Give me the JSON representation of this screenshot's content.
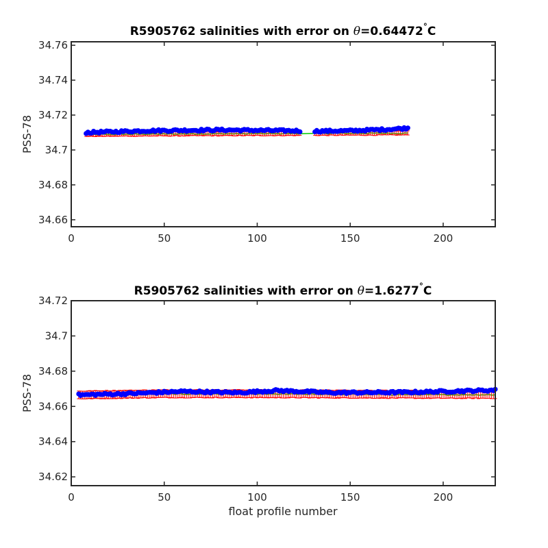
{
  "chart_data": [
    {
      "type": "scatter",
      "title_text": "R5905762 salinities with error on ",
      "title_symbol": "θ",
      "title_value": "=0.64472",
      "title_unit": "C",
      "title_degree": "°",
      "xlabel": "",
      "ylabel": "PSS-78",
      "xlim": [
        0,
        228
      ],
      "ylim": [
        34.656,
        34.762
      ],
      "xticks": [
        0,
        50,
        100,
        150,
        200
      ],
      "xtick_labels": [
        "0",
        "50",
        "100",
        "150",
        "200"
      ],
      "yticks": [
        34.66,
        34.68,
        34.7,
        34.72,
        34.74,
        34.76
      ],
      "ytick_labels": [
        "34.66",
        "34.68",
        "34.7",
        "34.72",
        "34.74",
        "34.76"
      ],
      "grid": false,
      "x_range": [
        8,
        181
      ],
      "x_gaps": [
        [
          124,
          130
        ]
      ],
      "series": [
        {
          "role": "float_salinity",
          "color": "#0000ff",
          "marker": "filled-circle",
          "profiles": [
            8,
            40,
            80,
            120,
            132,
            150,
            170,
            181
          ],
          "values": [
            34.71,
            34.711,
            34.7115,
            34.711,
            34.7108,
            34.711,
            34.7118,
            34.7125
          ]
        },
        {
          "role": "mapped_salinity",
          "color": "#ff0000",
          "marker": "error-bar",
          "profiles": [
            8,
            60,
            120,
            181
          ],
          "values": [
            34.709,
            34.7093,
            34.7095,
            34.7098
          ],
          "error": 0.0012
        },
        {
          "role": "calibrated_salinity",
          "color": "#00cc00",
          "marker": "line",
          "profiles": [
            8,
            60,
            120,
            181
          ],
          "values": [
            34.7088,
            34.7092,
            34.7094,
            34.7096
          ]
        }
      ]
    },
    {
      "type": "scatter",
      "title_text": "R5905762 salinities with error on ",
      "title_symbol": "θ",
      "title_value": "=1.6277",
      "title_unit": "C",
      "title_degree": "°",
      "xlabel": "float profile number",
      "ylabel": "PSS-78",
      "xlim": [
        0,
        228
      ],
      "ylim": [
        34.615,
        34.72
      ],
      "xticks": [
        0,
        50,
        100,
        150,
        200
      ],
      "xtick_labels": [
        "0",
        "50",
        "100",
        "150",
        "200"
      ],
      "yticks": [
        34.62,
        34.64,
        34.66,
        34.68,
        34.7,
        34.72
      ],
      "ytick_labels": [
        "34.62",
        "34.64",
        "34.66",
        "34.68",
        "34.7",
        "34.72"
      ],
      "grid": false,
      "x_range": [
        4,
        228
      ],
      "x_gaps": [],
      "series": [
        {
          "role": "float_salinity",
          "color": "#0000ff",
          "marker": "filled-circle",
          "profiles": [
            4,
            30,
            60,
            90,
            110,
            140,
            180,
            228
          ],
          "values": [
            34.6665,
            34.6672,
            34.6685,
            34.6678,
            34.669,
            34.6678,
            34.668,
            34.6692
          ]
        },
        {
          "role": "mapped_salinity",
          "color": "#ff0000",
          "marker": "error-bar",
          "profiles": [
            4,
            50,
            100,
            150,
            200,
            228
          ],
          "values": [
            34.6665,
            34.6672,
            34.6672,
            34.667,
            34.6668,
            34.6668
          ],
          "error": 0.0022
        },
        {
          "role": "calibrated_salinity",
          "color": "#00cc00",
          "marker": "line",
          "profiles": [
            4,
            50,
            100,
            150,
            200,
            228
          ],
          "values": [
            34.6663,
            34.667,
            34.667,
            34.6668,
            34.6666,
            34.6666
          ]
        }
      ]
    }
  ]
}
